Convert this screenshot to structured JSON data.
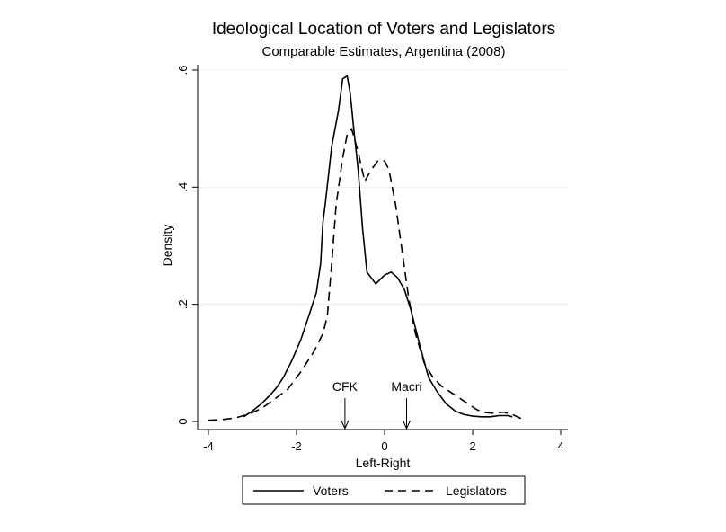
{
  "chart_data": {
    "type": "line",
    "title": "Ideological Location of Voters and Legislators",
    "subtitle": "Comparable Estimates, Argentina (2008)",
    "xlabel": "Left-Right",
    "ylabel": "Density",
    "xlim": [
      -4,
      4
    ],
    "ylim": [
      0,
      0.6
    ],
    "x_ticks": [
      {
        "value": -4,
        "label": "-4"
      },
      {
        "value": -2,
        "label": "-2"
      },
      {
        "value": 0,
        "label": "0"
      },
      {
        "value": 2,
        "label": "2"
      },
      {
        "value": 4,
        "label": "4"
      }
    ],
    "y_ticks": [
      {
        "value": 0,
        "label": "0"
      },
      {
        "value": 0.2,
        "label": ".2"
      },
      {
        "value": 0.4,
        "label": ".4"
      },
      {
        "value": 0.6,
        "label": ".6"
      }
    ],
    "grid": true,
    "legend_position": "bottom",
    "series": [
      {
        "name": "Voters",
        "style": "solid",
        "color": "#000000",
        "points": [
          [
            -3.2,
            0.008
          ],
          [
            -3.0,
            0.018
          ],
          [
            -2.8,
            0.03
          ],
          [
            -2.6,
            0.045
          ],
          [
            -2.45,
            0.058
          ],
          [
            -2.3,
            0.075
          ],
          [
            -2.1,
            0.105
          ],
          [
            -1.9,
            0.14
          ],
          [
            -1.7,
            0.185
          ],
          [
            -1.55,
            0.22
          ],
          [
            -1.45,
            0.27
          ],
          [
            -1.4,
            0.34
          ],
          [
            -1.35,
            0.37
          ],
          [
            -1.2,
            0.47
          ],
          [
            -1.05,
            0.53
          ],
          [
            -0.95,
            0.585
          ],
          [
            -0.85,
            0.59
          ],
          [
            -0.78,
            0.56
          ],
          [
            -0.7,
            0.5
          ],
          [
            -0.6,
            0.43
          ],
          [
            -0.5,
            0.33
          ],
          [
            -0.4,
            0.255
          ],
          [
            -0.2,
            0.235
          ],
          [
            0.0,
            0.25
          ],
          [
            0.15,
            0.255
          ],
          [
            0.3,
            0.245
          ],
          [
            0.45,
            0.225
          ],
          [
            0.6,
            0.19
          ],
          [
            0.8,
            0.13
          ],
          [
            1.0,
            0.075
          ],
          [
            1.2,
            0.05
          ],
          [
            1.4,
            0.03
          ],
          [
            1.6,
            0.018
          ],
          [
            1.8,
            0.012
          ],
          [
            2.0,
            0.009
          ],
          [
            2.2,
            0.008
          ],
          [
            2.4,
            0.008
          ],
          [
            2.6,
            0.01
          ],
          [
            2.8,
            0.01
          ],
          [
            2.9,
            0.008
          ]
        ]
      },
      {
        "name": "Legislators",
        "style": "dashed",
        "color": "#000000",
        "points": [
          [
            -4.0,
            0.002
          ],
          [
            -3.7,
            0.003
          ],
          [
            -3.4,
            0.006
          ],
          [
            -3.1,
            0.012
          ],
          [
            -2.8,
            0.022
          ],
          [
            -2.5,
            0.038
          ],
          [
            -2.2,
            0.055
          ],
          [
            -1.9,
            0.085
          ],
          [
            -1.6,
            0.12
          ],
          [
            -1.4,
            0.15
          ],
          [
            -1.3,
            0.18
          ],
          [
            -1.2,
            0.27
          ],
          [
            -1.1,
            0.37
          ],
          [
            -0.95,
            0.45
          ],
          [
            -0.85,
            0.49
          ],
          [
            -0.75,
            0.5
          ],
          [
            -0.6,
            0.46
          ],
          [
            -0.45,
            0.41
          ],
          [
            -0.3,
            0.43
          ],
          [
            -0.15,
            0.445
          ],
          [
            0.0,
            0.445
          ],
          [
            0.1,
            0.43
          ],
          [
            0.25,
            0.37
          ],
          [
            0.4,
            0.29
          ],
          [
            0.55,
            0.21
          ],
          [
            0.7,
            0.15
          ],
          [
            0.9,
            0.1
          ],
          [
            1.1,
            0.075
          ],
          [
            1.3,
            0.06
          ],
          [
            1.5,
            0.05
          ],
          [
            1.7,
            0.04
          ],
          [
            1.9,
            0.03
          ],
          [
            2.1,
            0.02
          ],
          [
            2.3,
            0.015
          ],
          [
            2.5,
            0.014
          ],
          [
            2.7,
            0.016
          ],
          [
            2.9,
            0.012
          ],
          [
            3.1,
            0.005
          ],
          [
            3.2,
            0.003
          ]
        ]
      }
    ],
    "annotations": [
      {
        "label": "CFK",
        "x": -0.9
      },
      {
        "label": "Macri",
        "x": 0.5
      }
    ]
  }
}
